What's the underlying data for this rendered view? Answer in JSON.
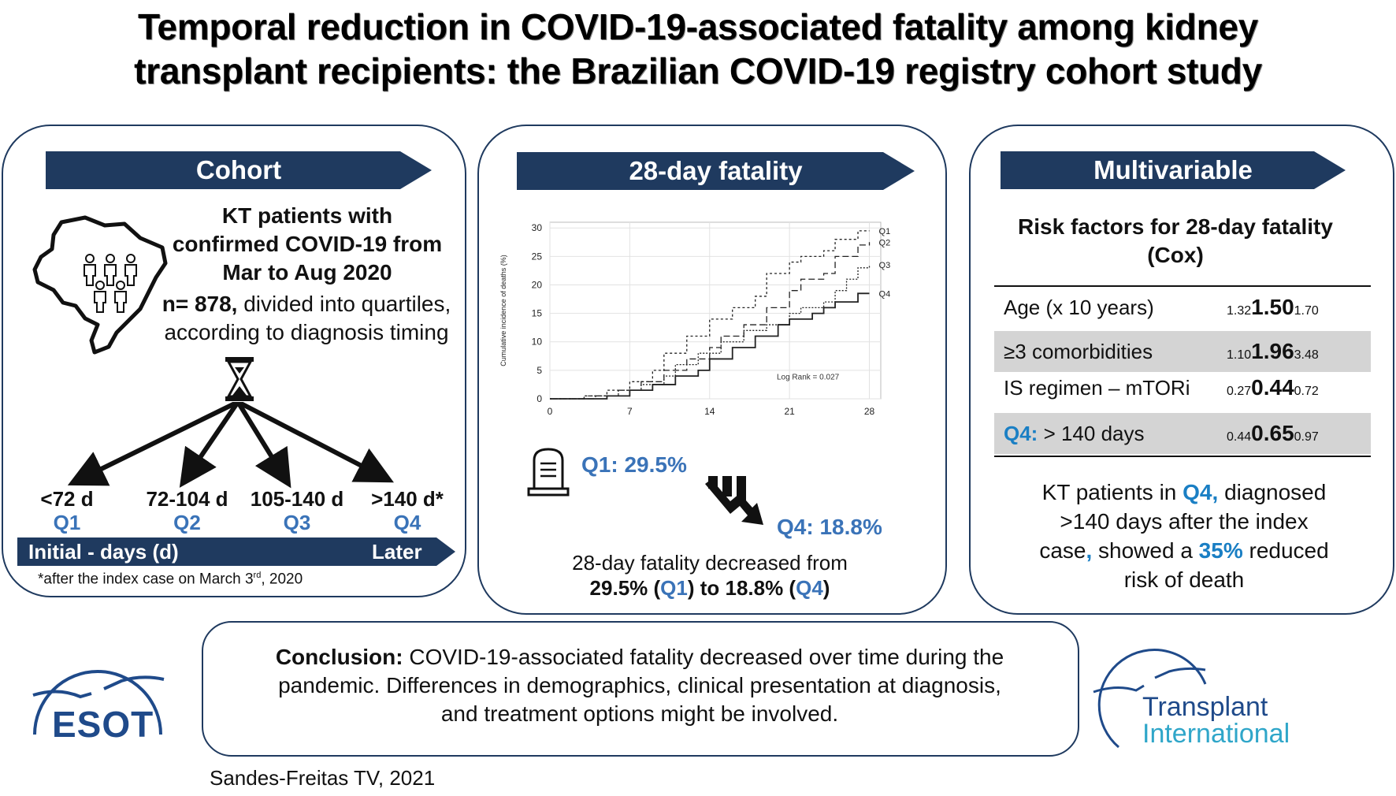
{
  "title": {
    "line1": "Temporal reduction in COVID-19-associated fatality among kidney",
    "line2": "transplant recipients: the Brazilian COVID-19 registry cohort study"
  },
  "cohort": {
    "banner": "Cohort",
    "desc_line1": "KT patients with",
    "desc_line2": "confirmed COVID-19 from",
    "desc_line3": "Mar to Aug 2020",
    "n_bold": "n= 878,",
    "n_rest": " divided into quartiles,",
    "n_line2": "according to diagnosis timing",
    "quartiles": [
      {
        "range": "<72 d",
        "name": "Q1"
      },
      {
        "range": "72-104 d",
        "name": "Q2"
      },
      {
        "range": "105-140 d",
        "name": "Q3"
      },
      {
        "range": ">140 d*",
        "name": "Q4"
      }
    ],
    "timeline_left": "Initial  - days (d)",
    "timeline_right": "Later",
    "footnote_pre": "*after the index case on March 3",
    "footnote_sup": "rd",
    "footnote_post": ", 2020",
    "icons": [
      "brazil-map-icon",
      "people-icon",
      "hourglass-icon"
    ]
  },
  "fatality": {
    "banner": "28-day fatality",
    "q1_text": "Q1: 29.5%",
    "q4_text": "Q4: 18.8%",
    "summary_line1": "28-day fatality decreased from",
    "summary_a": "29.5% (",
    "summary_q1": "Q1",
    "summary_b": ") to 18.8% (",
    "summary_q4": "Q4",
    "summary_c": ")",
    "icons": [
      "tombstone-icon",
      "downward-trend-arrow-icon"
    ]
  },
  "chart_data": {
    "type": "line",
    "step": true,
    "ylabel": "Cumulative incidence of deaths (%)",
    "xlabel": "",
    "x_ticks": [
      0,
      7,
      14,
      21,
      28
    ],
    "y_ticks": [
      0,
      5,
      10,
      15,
      20,
      25,
      30
    ],
    "xlim": [
      0,
      29
    ],
    "ylim": [
      0,
      31
    ],
    "annotation": "Log Rank = 0.027",
    "series": [
      {
        "name": "Q1",
        "dash": "3,3",
        "points": [
          [
            0,
            0
          ],
          [
            3,
            0.5
          ],
          [
            5,
            1.5
          ],
          [
            7,
            3
          ],
          [
            9,
            5
          ],
          [
            10,
            8
          ],
          [
            12,
            11
          ],
          [
            14,
            14
          ],
          [
            16,
            16
          ],
          [
            18,
            18
          ],
          [
            19,
            22
          ],
          [
            21,
            24
          ],
          [
            22,
            25
          ],
          [
            24,
            26
          ],
          [
            25,
            28
          ],
          [
            27,
            29.5
          ],
          [
            28,
            29.5
          ]
        ]
      },
      {
        "name": "Q2",
        "dash": "8,4",
        "points": [
          [
            0,
            0
          ],
          [
            4,
            0.5
          ],
          [
            6,
            1.5
          ],
          [
            8,
            3
          ],
          [
            10,
            5
          ],
          [
            12,
            7
          ],
          [
            14,
            9
          ],
          [
            15,
            11
          ],
          [
            17,
            13
          ],
          [
            19,
            16
          ],
          [
            21,
            19
          ],
          [
            22,
            21
          ],
          [
            24,
            22
          ],
          [
            25,
            25
          ],
          [
            27,
            27
          ],
          [
            28,
            27.5
          ]
        ]
      },
      {
        "name": "Q3",
        "dash": "2,2",
        "points": [
          [
            0,
            0
          ],
          [
            3,
            0.5
          ],
          [
            6,
            1.5
          ],
          [
            8,
            2.5
          ],
          [
            10,
            4
          ],
          [
            11,
            6
          ],
          [
            13,
            8
          ],
          [
            15,
            10
          ],
          [
            17,
            12
          ],
          [
            19,
            13
          ],
          [
            21,
            15
          ],
          [
            22,
            16
          ],
          [
            24,
            17
          ],
          [
            25,
            19
          ],
          [
            26,
            21
          ],
          [
            27,
            23
          ],
          [
            28,
            23.5
          ]
        ]
      },
      {
        "name": "Q4",
        "dash": "",
        "points": [
          [
            0,
            0
          ],
          [
            5,
            0.5
          ],
          [
            7,
            1.5
          ],
          [
            9,
            2.5
          ],
          [
            11,
            4
          ],
          [
            13,
            5
          ],
          [
            14,
            7
          ],
          [
            16,
            9
          ],
          [
            18,
            11
          ],
          [
            20,
            13
          ],
          [
            21,
            14
          ],
          [
            23,
            15
          ],
          [
            24,
            16
          ],
          [
            25,
            17
          ],
          [
            27,
            18.5
          ],
          [
            28,
            18.5
          ]
        ]
      }
    ]
  },
  "multivariable": {
    "banner": "Multivariable",
    "heading_line1": "Risk factors for 28-day fatality",
    "heading_line2": "(Cox)",
    "rows": [
      {
        "label": "Age (x 10 years)",
        "low": "1.32",
        "est": "1.50",
        "high": "1.70",
        "shaded": false
      },
      {
        "label": "≥3 comorbidities",
        "low": "1.10",
        "est": "1.96",
        "high": "3.48",
        "shaded": true
      },
      {
        "label": "IS regimen – mTORi",
        "low": "0.27",
        "est": "0.44",
        "high": "0.72",
        "shaded": false
      },
      {
        "label_prefix": "Q4:",
        "label": " > 140 days",
        "low": "0.44",
        "est": "0.65",
        "high": "0.97",
        "shaded": true
      }
    ],
    "summary_a": "KT patients in ",
    "summary_q4": "Q4,",
    "summary_b": " diagnosed",
    "summary_line2": ">140 days after the index",
    "summary_line3a": "case",
    "summary_comma": ",",
    "summary_line3b": " showed a ",
    "summary_pct": "35%",
    "summary_line3c": " reduced",
    "summary_line4": "risk of death"
  },
  "conclusion": {
    "label": "Conclusion:",
    "line1": " COVID-19-associated fatality decreased over time during  the",
    "line2": "pandemic.  Differences in demographics,  clinical presentation at diagnosis,",
    "line3": "and treatment  options might  be involved."
  },
  "logos": {
    "esot": "ESOT",
    "ti_line1": "Transplant",
    "ti_line2": "International"
  },
  "citation": "Sandes-Freitas TV, 2021",
  "colors": {
    "navy": "#1f3a5f",
    "accent_blue": "#3a73b8",
    "shade": "#d4d4d4",
    "ti_teal": "#2fa6c9"
  }
}
